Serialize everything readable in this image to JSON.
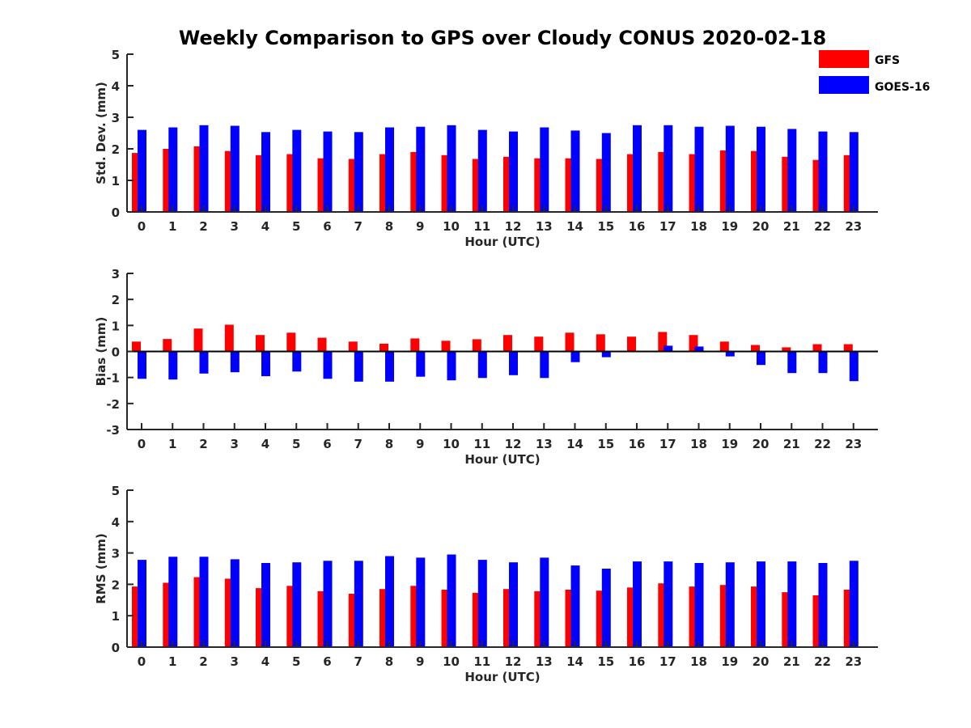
{
  "title": "Weekly Comparison to GPS over Cloudy CONUS 2020-02-18",
  "legend": {
    "placement": "top-right",
    "items": [
      {
        "name": "GFS",
        "color": "#ff0000"
      },
      {
        "name": "GOES-16",
        "color": "#0000ff"
      }
    ]
  },
  "chart_data": [
    {
      "type": "bar",
      "xlabel": "Hour (UTC)",
      "ylabel": "Std. Dev. (mm)",
      "ylim": [
        0,
        5
      ],
      "yticks": [
        "0",
        "1",
        "2",
        "3",
        "4",
        "5"
      ],
      "categories": [
        "0",
        "1",
        "2",
        "3",
        "4",
        "5",
        "6",
        "7",
        "8",
        "9",
        "10",
        "11",
        "12",
        "13",
        "14",
        "15",
        "16",
        "17",
        "18",
        "19",
        "20",
        "21",
        "22",
        "23"
      ],
      "series": [
        {
          "name": "GFS",
          "color": "#ff0000",
          "values": [
            1.87,
            2.0,
            2.08,
            1.93,
            1.8,
            1.83,
            1.7,
            1.68,
            1.83,
            1.9,
            1.8,
            1.68,
            1.75,
            1.7,
            1.7,
            1.68,
            1.83,
            1.9,
            1.83,
            1.95,
            1.93,
            1.75,
            1.65,
            1.8
          ]
        },
        {
          "name": "GOES-16",
          "color": "#0000ff",
          "values": [
            2.6,
            2.68,
            2.75,
            2.73,
            2.53,
            2.6,
            2.55,
            2.53,
            2.68,
            2.7,
            2.75,
            2.6,
            2.55,
            2.68,
            2.58,
            2.5,
            2.75,
            2.75,
            2.7,
            2.73,
            2.7,
            2.63,
            2.55,
            2.53
          ]
        }
      ]
    },
    {
      "type": "bar",
      "xlabel": "Hour (UTC)",
      "ylabel": "Bias (mm)",
      "ylim": [
        -3,
        3
      ],
      "yticks": [
        "-3",
        "-2",
        "-1",
        "0",
        "1",
        "2",
        "3"
      ],
      "categories": [
        "0",
        "1",
        "2",
        "3",
        "4",
        "5",
        "6",
        "7",
        "8",
        "9",
        "10",
        "11",
        "12",
        "13",
        "14",
        "15",
        "16",
        "17",
        "18",
        "19",
        "20",
        "21",
        "22",
        "23"
      ],
      "series": [
        {
          "name": "GFS",
          "color": "#ff0000",
          "values": [
            0.38,
            0.48,
            0.88,
            1.03,
            0.63,
            0.72,
            0.53,
            0.38,
            0.3,
            0.5,
            0.41,
            0.47,
            0.63,
            0.57,
            0.72,
            0.66,
            0.57,
            0.75,
            0.63,
            0.38,
            0.25,
            0.16,
            0.28,
            0.28
          ]
        },
        {
          "name": "GOES-16",
          "color": "#0000ff",
          "values": [
            -1.05,
            -1.08,
            -0.85,
            -0.8,
            -0.95,
            -0.77,
            -1.05,
            -1.16,
            -1.16,
            -0.97,
            -1.11,
            -1.02,
            -0.91,
            -1.02,
            -0.41,
            -0.22,
            -0.03,
            0.22,
            0.19,
            -0.19,
            -0.52,
            -0.83,
            -0.83,
            -1.14
          ]
        }
      ]
    },
    {
      "type": "bar",
      "xlabel": "Hour (UTC)",
      "ylabel": "RMS (mm)",
      "ylim": [
        0,
        5
      ],
      "yticks": [
        "0",
        "1",
        "2",
        "3",
        "4",
        "5"
      ],
      "categories": [
        "0",
        "1",
        "2",
        "3",
        "4",
        "5",
        "6",
        "7",
        "8",
        "9",
        "10",
        "11",
        "12",
        "13",
        "14",
        "15",
        "16",
        "17",
        "18",
        "19",
        "20",
        "21",
        "22",
        "23"
      ],
      "series": [
        {
          "name": "GFS",
          "color": "#ff0000",
          "values": [
            1.93,
            2.05,
            2.23,
            2.18,
            1.88,
            1.95,
            1.78,
            1.7,
            1.85,
            1.95,
            1.83,
            1.73,
            1.85,
            1.78,
            1.83,
            1.8,
            1.9,
            2.03,
            1.93,
            1.98,
            1.93,
            1.75,
            1.65,
            1.83
          ]
        },
        {
          "name": "GOES-16",
          "color": "#0000ff",
          "values": [
            2.78,
            2.88,
            2.88,
            2.8,
            2.68,
            2.7,
            2.75,
            2.75,
            2.9,
            2.85,
            2.95,
            2.78,
            2.7,
            2.85,
            2.6,
            2.5,
            2.73,
            2.73,
            2.68,
            2.7,
            2.73,
            2.73,
            2.68,
            2.75
          ]
        }
      ]
    }
  ]
}
